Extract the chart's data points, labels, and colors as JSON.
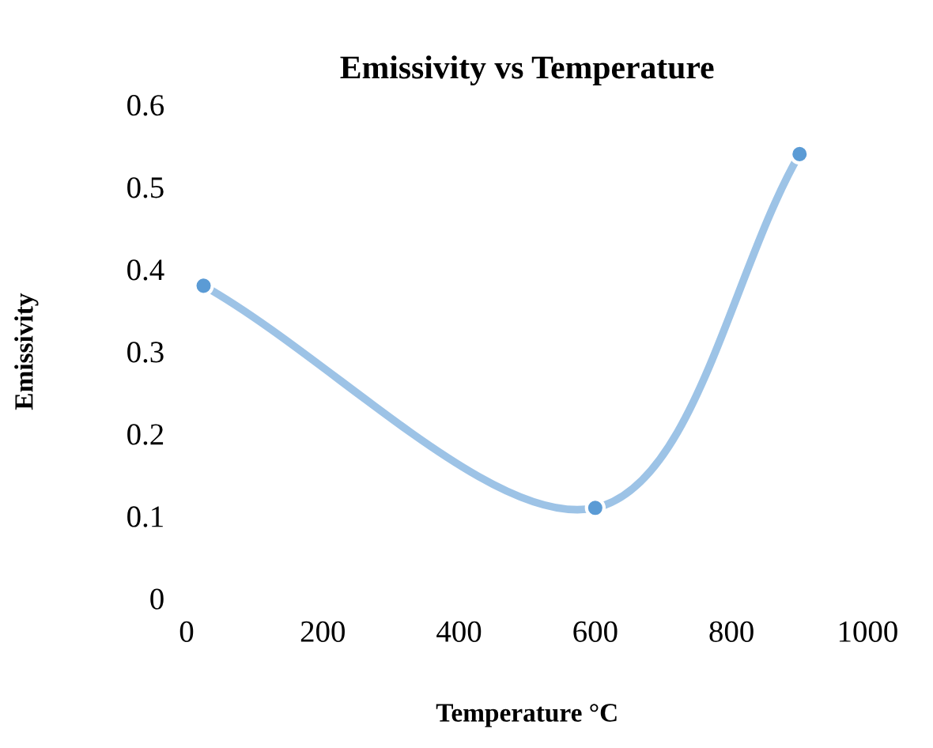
{
  "chart_data": {
    "type": "line",
    "title": "Emissivity vs Temperature",
    "xlabel": "Temperature °C",
    "ylabel": "Emissivity",
    "x": [
      25,
      600,
      900
    ],
    "series": [
      {
        "color": "#5b9bd5",
        "values": [
          0.38,
          0.11,
          0.54
        ]
      }
    ],
    "xlim": [
      0,
      1000
    ],
    "xticks": [
      0,
      200,
      400,
      600,
      800,
      1000
    ],
    "ylim": [
      0,
      0.6
    ],
    "yticks": [
      0,
      0.1,
      0.2,
      0.3,
      0.4,
      0.5,
      0.6
    ],
    "marker": "circle",
    "line_style": "solid",
    "grid": false,
    "legend": false
  }
}
